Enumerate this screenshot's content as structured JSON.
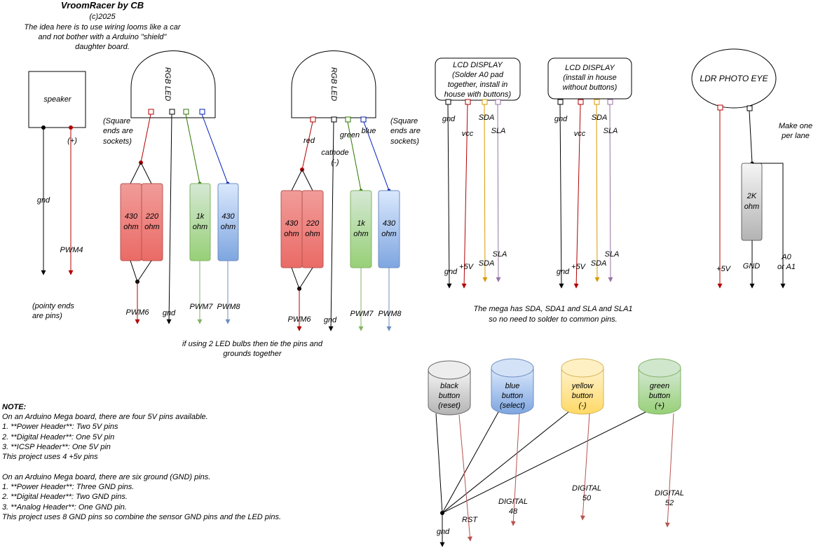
{
  "header": {
    "title": "VroomRacer by CB",
    "copyright": "(c)2025",
    "intro_lines": [
      "The idea here is to use wiring looms like a car",
      "and not bother with a Arduino \"shield\"",
      "daughter board."
    ]
  },
  "speaker": {
    "label": "speaker",
    "gnd": "gnd",
    "plus": "(+)",
    "pwm": "PWM4",
    "pin_note_lines": [
      "(pointy ends",
      "are pins)"
    ]
  },
  "rgb1": {
    "label": "RGB LED",
    "socket_note_lines": [
      "(Square",
      "ends are",
      "sockets)"
    ],
    "resistors": [
      "430\nohm",
      "220\nohm",
      "1k\nohm",
      "430\nohm"
    ],
    "pins": [
      "PWM6",
      "gnd",
      "PWM7",
      "PWM8"
    ]
  },
  "rgb2": {
    "label": "RGB LED",
    "socket_note_lines": [
      "(Square",
      "ends are",
      "sockets)"
    ],
    "wire_labels": {
      "red": "red",
      "cathode": "cathode",
      "cathode_sign": "(-)",
      "green": "green",
      "blue": "blue"
    },
    "resistors": [
      "430\nohm",
      "220\nohm",
      "1k\nohm",
      "430\nohm"
    ],
    "pins": [
      "PWM6",
      "gnd",
      "PWM7",
      "PWM8"
    ]
  },
  "led_note_lines": [
    "if using 2 LED bulbs then tie the pins and",
    "grounds together"
  ],
  "lcd1": {
    "lines": [
      "LCD DISPLAY",
      "(Solder A0 pad",
      "together, install in",
      "house with buttons)"
    ],
    "top_labels": [
      "gnd",
      "vcc",
      "SDA",
      "SLA"
    ],
    "bottom_labels": [
      "gnd",
      "+5V",
      "SDA",
      "SLA"
    ]
  },
  "lcd2": {
    "lines": [
      "LCD DISPLAY",
      "(install in house",
      "without buttons)"
    ],
    "top_labels": [
      "gnd",
      "vcc",
      "SDA",
      "SLA"
    ],
    "bottom_labels": [
      "gnd",
      "+5V",
      "SDA",
      "SLA"
    ]
  },
  "mega_note_lines": [
    "The mega has SDA, SDA1 and SLA and SLA1",
    "so no need to solder to common pins."
  ],
  "ldr": {
    "label": "LDR PHOTO EYE",
    "make_one_lines": [
      "Make one",
      "per lane"
    ],
    "resistor": "2K\nohm",
    "pins": [
      "+5V",
      "GND",
      "A0\nor A1"
    ]
  },
  "buttons": [
    {
      "label": "black\nbutton\n(reset)",
      "pin": "RST",
      "color": "#f5f5f5"
    },
    {
      "label": "blue\nbutton\n(select)",
      "pin": "DIGITAL\n48",
      "color": "#dae8fc"
    },
    {
      "label": "yellow\nbutton\n(-)",
      "pin": "DIGITAL\n50",
      "color": "#fff2cc"
    },
    {
      "label": "green\nbutton\n(+)",
      "pin": "DIGITAL\n52",
      "color": "#d5e8d4"
    }
  ],
  "buttons_gnd": "gnd",
  "note": {
    "heading": "NOTE:",
    "lines": [
      "On an Arduino Mega board, there are four 5V pins available.",
      "1. **Power Header**: Two 5V pins",
      "2. **Digital Header**: One 5V pin",
      "3. **ICSP Header**: One 5V pin",
      "This project uses 4 +5v pins",
      "",
      "On an Arduino Mega board, there are six ground (GND) pins.",
      "1. **Power Header**: Three GND pins.",
      "2. **Digital Header**: Two GND pins.",
      "3. **Analog Header**: One GND pin.",
      "This project uses 8 GND pins so combine the sensor GND pins and the LED pins."
    ]
  },
  "colors": {
    "red": "#b20000",
    "black": "#000000",
    "green": "#2d7600",
    "blue": "#001dbc",
    "yellow": "#d79b00",
    "purple": "#9673a6",
    "faint_green": "#82b366",
    "faint_blue": "#6c8ebf",
    "faint_red": "#b85450",
    "res_red_top": "#f19c99",
    "res_red_bot": "#ea6b66",
    "res_green_top": "#d5e8d4",
    "res_green_bot": "#97d077",
    "res_blue_top": "#dae8fc",
    "res_blue_bot": "#7ea6e0",
    "res_gray_top": "#f5f5f5",
    "res_gray_bot": "#b3b3b3"
  }
}
